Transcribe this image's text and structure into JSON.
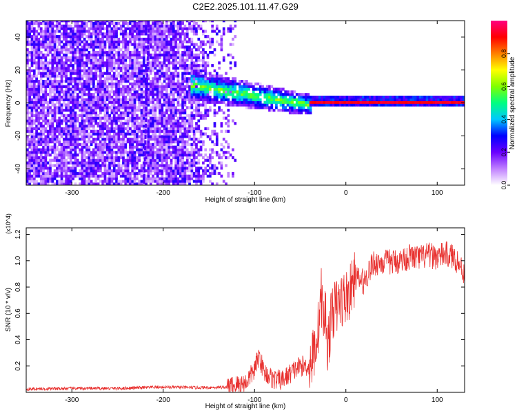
{
  "figure_title": "C2E2.2025.101.11.47.G29",
  "chart_data": [
    {
      "type": "heatmap",
      "title": "C2E2.2025.101.11.47.G29",
      "xlabel": "Height of straight line (km)",
      "ylabel": "Frequency (Hz)",
      "xlim": [
        -350,
        130
      ],
      "ylim": [
        -50,
        50
      ],
      "xticks": [
        -300,
        -200,
        -100,
        0,
        100
      ],
      "yticks": [
        -40,
        -20,
        0,
        20,
        40
      ],
      "colorbar": {
        "label": "Normalized spectral amplitude",
        "range": [
          0,
          1
        ],
        "ticks": [
          "0.0",
          "0.2",
          "0.4",
          "0.6",
          "0.8"
        ],
        "tick_values": [
          0.0,
          0.2,
          0.4,
          0.6,
          0.8
        ],
        "colormap": [
          "#ffffff",
          "#c080ff",
          "#6a00ff",
          "#0000ff",
          "#00c8ff",
          "#00ff80",
          "#80ff00",
          "#ffff00",
          "#ff8000",
          "#ff0000",
          "#ff0080"
        ]
      },
      "features": {
        "noise_region_x": [
          -350,
          -130
        ],
        "carrier_line": {
          "x": [
            -40,
            130
          ],
          "frequency": 0,
          "amplitude": 0.9
        },
        "transition_cluster": {
          "x": [
            -170,
            -40
          ],
          "frequency_center_start": 10,
          "frequency_center_end": -2,
          "amplitude": 0.5
        }
      }
    },
    {
      "type": "line",
      "xlabel": "Height of straight line (km)",
      "ylabel": "SNR (10 * v/v)",
      "y_multiplier": "(x10^4)",
      "xlim": [
        -350,
        130
      ],
      "ylim": [
        0,
        1.25
      ],
      "xticks": [
        -300,
        -200,
        -100,
        0,
        100
      ],
      "yticks": [
        "0.2",
        "0.4",
        "0.6",
        "0.8",
        "1.0",
        "1.2"
      ],
      "ytick_values": [
        0.2,
        0.4,
        0.6,
        0.8,
        1.0,
        1.2
      ],
      "color": "#e8312f",
      "series": [
        {
          "x": [
            -350,
            -300,
            -250,
            -200,
            -160,
            -130,
            -110,
            -100,
            -95,
            -90,
            -80,
            -70,
            -60,
            -50,
            -40,
            -35,
            -30,
            -27,
            -25,
            -22,
            -20,
            -17,
            -15,
            -10,
            -5,
            0,
            5,
            10,
            15,
            20,
            25,
            30,
            40,
            50,
            60,
            70,
            80,
            90,
            100,
            110,
            120,
            130
          ],
          "y": [
            0.025,
            0.03,
            0.03,
            0.04,
            0.035,
            0.04,
            0.07,
            0.17,
            0.28,
            0.16,
            0.1,
            0.09,
            0.15,
            0.2,
            0.2,
            0.3,
            0.5,
            0.75,
            0.55,
            0.6,
            0.35,
            0.5,
            0.62,
            0.65,
            0.7,
            0.72,
            0.76,
            0.88,
            0.85,
            0.84,
            0.92,
            0.98,
            0.99,
            0.99,
            1.0,
            1.03,
            1.02,
            1.04,
            1.03,
            1.05,
            1.02,
            0.9
          ]
        }
      ]
    }
  ]
}
